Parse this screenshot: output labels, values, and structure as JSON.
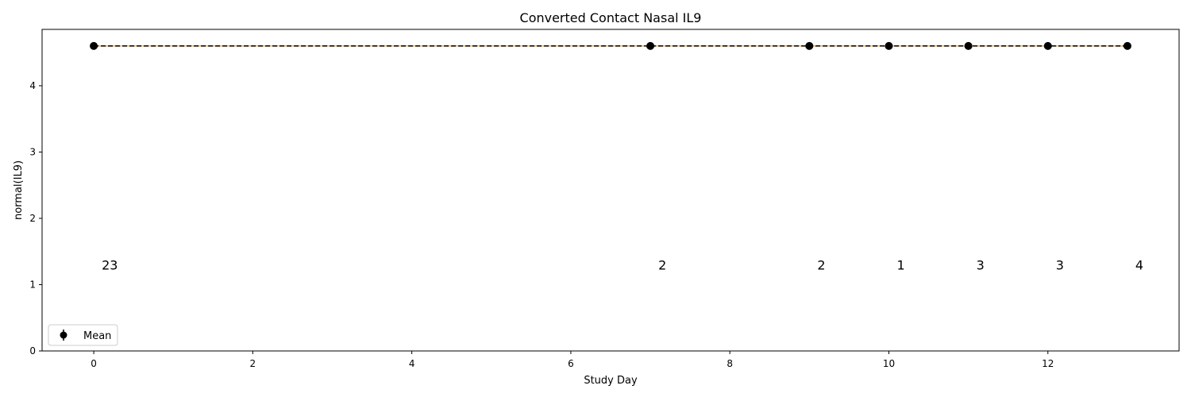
{
  "chart_data": {
    "type": "line",
    "title": "Converted Contact Nasal IL9",
    "xlabel": "Study Day",
    "ylabel": "normal(IL9)",
    "xlim": [
      -0.65,
      13.65
    ],
    "ylim": [
      0,
      4.85
    ],
    "xticks": [
      0,
      2,
      4,
      6,
      8,
      10,
      12
    ],
    "yticks": [
      0,
      1,
      2,
      3,
      4
    ],
    "grid": false,
    "legend": {
      "placement": "lower-left",
      "entries": [
        "Mean"
      ]
    },
    "series": [
      {
        "name": "Mean",
        "x": [
          0,
          7,
          9,
          10,
          11,
          12,
          13
        ],
        "y": [
          4.6,
          4.6,
          4.6,
          4.6,
          4.6,
          4.6,
          4.6
        ],
        "error": [
          0,
          0,
          0,
          0,
          0,
          0,
          0
        ],
        "color": "#000000"
      }
    ],
    "reference_line": {
      "y": 4.6,
      "style": "dashed",
      "color": "#000000",
      "accent_color": "#e8b46a"
    },
    "counts": {
      "y": 1.3,
      "labels": [
        "23",
        "2",
        "2",
        "1",
        "3",
        "3",
        "4"
      ]
    }
  }
}
